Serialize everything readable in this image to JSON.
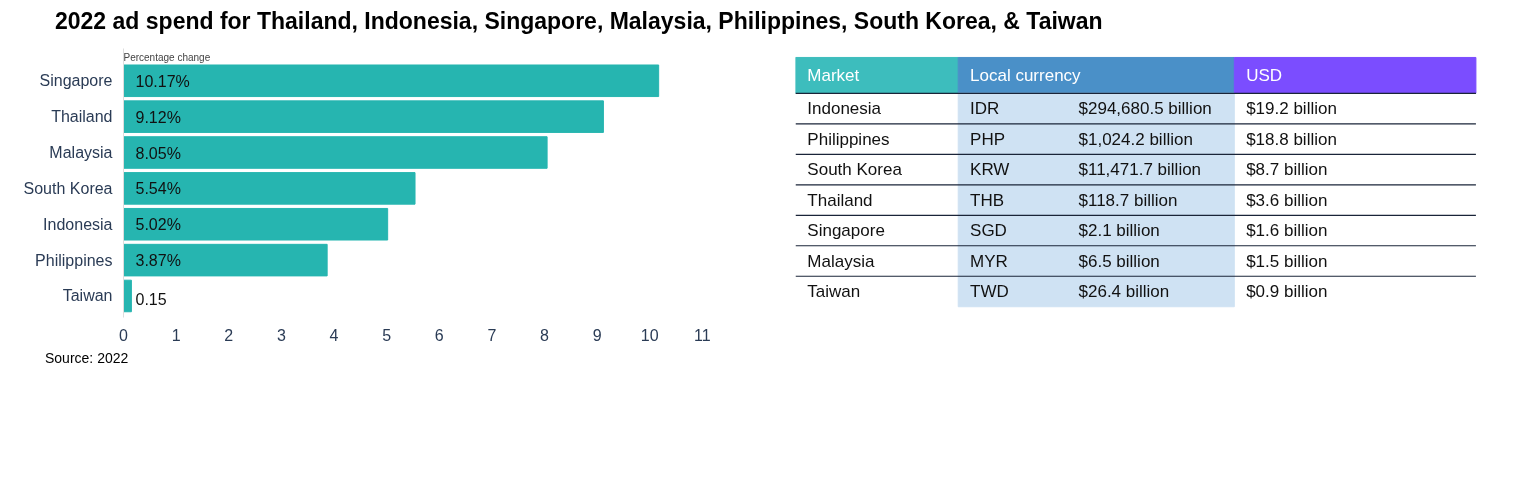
{
  "chart_data": [
    {
      "type": "bar",
      "orientation": "horizontal",
      "title": "2022 ad spend for Thailand, Indonesia, Singapore, Malaysia, Philippines, South Korea, & Taiwan",
      "subtitle": "Percentage change",
      "categories": [
        "Singapore",
        "Thailand",
        "Malaysia",
        "South Korea",
        "Indonesia",
        "Philippines",
        "Taiwan"
      ],
      "values": [
        10.17,
        9.12,
        8.05,
        5.54,
        5.02,
        3.87,
        0.15
      ],
      "value_labels": [
        "10.17%",
        "9.12%",
        "8.05%",
        "5.54%",
        "5.02%",
        "3.87%",
        "0.15"
      ],
      "color": "#26b5b0",
      "xlim": [
        0,
        11
      ],
      "xticks": [
        0,
        1,
        2,
        3,
        4,
        5,
        6,
        7,
        8,
        9,
        10,
        11
      ],
      "grid": false,
      "annotations": [
        "Source: 2022"
      ]
    },
    {
      "type": "other",
      "colors": [
        "#3dbdbd",
        "#4a90c8",
        "#7b4dff",
        "#cfe2f3"
      ],
      "annotations": [
        "Market",
        "Local currency",
        "USD",
        "Indonesia",
        "IDR",
        "$294,680.5 billion",
        "$19.2 billion",
        "Philippines",
        "PHP",
        "$1,024.2 billion",
        "$18.8 billion",
        "South Korea",
        "KRW",
        "$11,471.7 billion",
        "$8.7 billion",
        "Thailand",
        "THB",
        "$118.7 billion",
        "$3.6 billion",
        "Singapore",
        "SGD",
        "$2.1 billion",
        "$1.6 billion",
        "Malaysia",
        "MYR",
        "$6.5 billion",
        "$1.5 billion",
        "Taiwan",
        "TWD",
        "$26.4 billion",
        "$0.9 billion"
      ]
    }
  ]
}
